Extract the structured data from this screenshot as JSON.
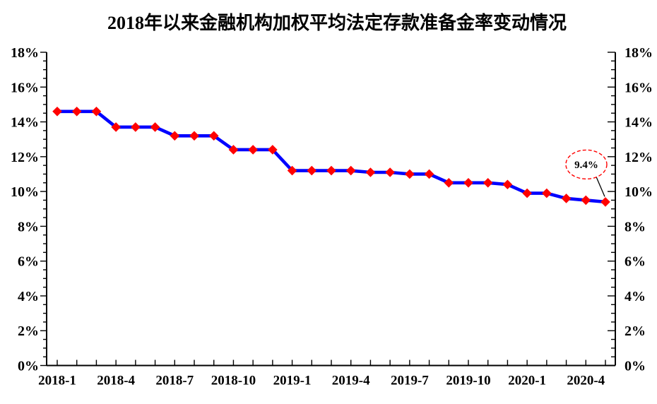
{
  "chart_data": {
    "type": "line",
    "title": "2018年以来金融机构加权平均法定存款准备金率变动情况",
    "x": [
      "2018-1",
      "2018-2",
      "2018-3",
      "2018-4",
      "2018-5",
      "2018-6",
      "2018-7",
      "2018-8",
      "2018-9",
      "2018-10",
      "2018-11",
      "2018-12",
      "2019-1",
      "2019-2",
      "2019-3",
      "2019-4",
      "2019-5",
      "2019-6",
      "2019-7",
      "2019-8",
      "2019-9",
      "2019-10",
      "2019-11",
      "2019-12",
      "2020-1",
      "2020-2",
      "2020-3",
      "2020-4",
      "2020-5"
    ],
    "values": [
      14.6,
      14.6,
      14.6,
      13.7,
      13.7,
      13.7,
      13.2,
      13.2,
      13.2,
      12.4,
      12.4,
      12.4,
      11.2,
      11.2,
      11.2,
      11.2,
      11.1,
      11.1,
      11.0,
      11.0,
      10.5,
      10.5,
      10.5,
      10.4,
      9.9,
      9.9,
      9.6,
      9.5,
      9.4
    ],
    "x_tick_labels": [
      "2018-1",
      "2018-4",
      "2018-7",
      "2018-10",
      "2019-1",
      "2019-4",
      "2019-7",
      "2019-10",
      "2020-1",
      "2020-4"
    ],
    "x_tick_every": 3,
    "y_tick_labels": [
      "0%",
      "2%",
      "4%",
      "6%",
      "8%",
      "10%",
      "12%",
      "14%",
      "16%",
      "18%"
    ],
    "ylim": [
      0,
      18
    ],
    "y_major_step": 2,
    "y_minor_step": 0.5,
    "y_axis_sides": "both",
    "grid": false,
    "legend": false,
    "annotation": {
      "text": "9.4%",
      "x": "2020-5",
      "value": 9.4
    },
    "colors": {
      "line": "#0000FF",
      "marker": "#FF0000",
      "axis": "#000000",
      "text": "#000000",
      "annotation_outline": "#FF0000",
      "annotation_text": "#000000",
      "background": "#FFFFFF"
    }
  }
}
